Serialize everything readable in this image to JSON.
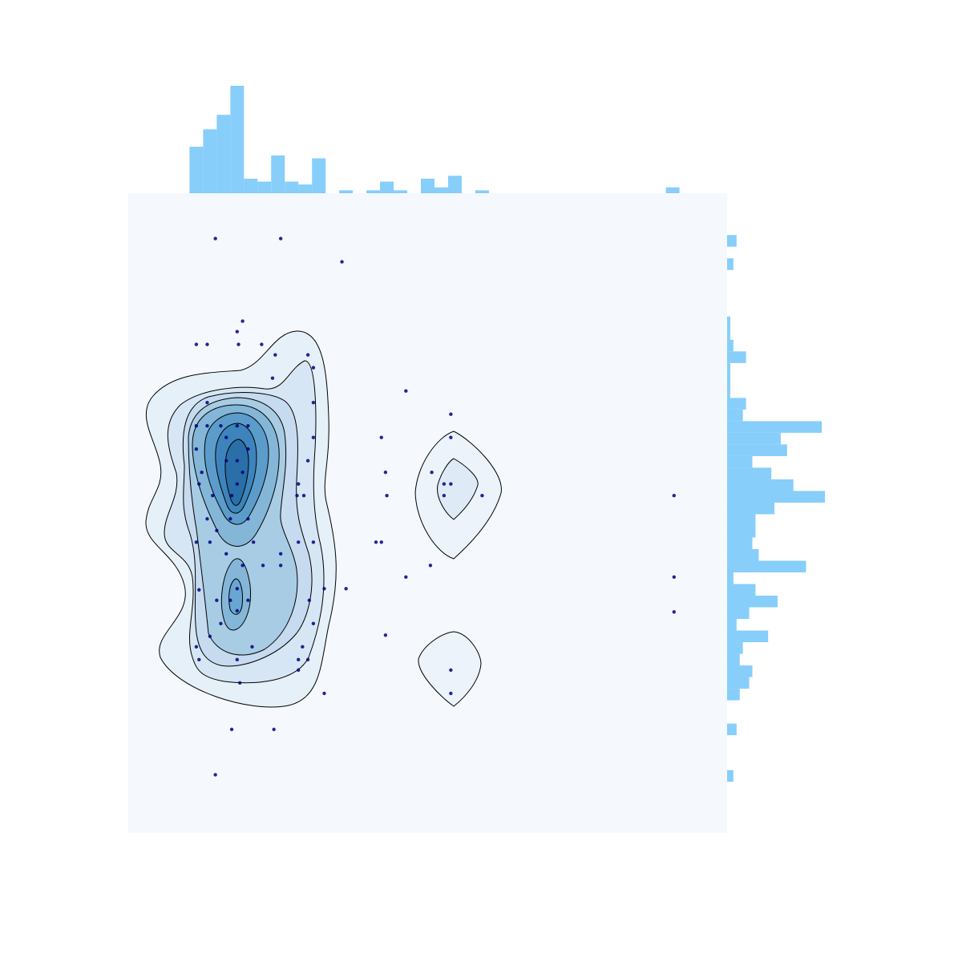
{
  "chart_data": [
    {
      "type": "scatter",
      "color": "#000080",
      "xlim": [
        -4.5,
        39.5
      ],
      "ylim": [
        -4.4,
        50.6
      ],
      "x": [
        1.9,
        6.7,
        11.2,
        3.9,
        3.5,
        0.5,
        1.3,
        3.6,
        5.3,
        6.3,
        8.7,
        9.1,
        6.1,
        15.9,
        9.1,
        1.3,
        0.5,
        1.3,
        9.1,
        14.1,
        19.2,
        19.2,
        8.7,
        14.4,
        17.8,
        18.7,
        19.2,
        21.5,
        18.7,
        14.5,
        8.0,
        7.9,
        8.4,
        35.6,
        0.7,
        1.7,
        3.5,
        3.5,
        2.7,
        4.3,
        0.5,
        0.9,
        1.3,
        2.0,
        3.0,
        4.3,
        9.1,
        8.0,
        6.7,
        5.4,
        6.7,
        3.9,
        3.5,
        3.0,
        2.0,
        3.5,
        4.3,
        14.1,
        13.7,
        17.7,
        15.9,
        11.5,
        9.9,
        8.8,
        35.6,
        35.6,
        14.4,
        9.1,
        8.3,
        8.7,
        8.0,
        9.9,
        3.7,
        1.5,
        0.5,
        0.7,
        3.1,
        6.2,
        1.9,
        19.2,
        19.2,
        1.5,
        0.5,
        2.7,
        4.7,
        0.7,
        2.3,
        4.6,
        3.5,
        8.0,
        3.5,
        2.7,
        3.9,
        3.1,
        2.3,
        4.3
      ],
      "y": [
        46.7,
        46.7,
        44.7,
        39.6,
        38.7,
        37.6,
        37.6,
        37.6,
        37.6,
        36.7,
        36.7,
        35.6,
        34.7,
        33.6,
        32.6,
        32.6,
        30.6,
        30.6,
        29.6,
        29.6,
        31.6,
        29.6,
        27.6,
        26.6,
        26.6,
        25.6,
        25.6,
        24.6,
        24.6,
        24.6,
        25.6,
        24.6,
        24.6,
        24.6,
        25.6,
        24.6,
        25.6,
        27.6,
        29.6,
        28.6,
        28.6,
        26.6,
        22.6,
        21.6,
        22.6,
        22.6,
        20.6,
        20.6,
        19.6,
        18.6,
        18.6,
        18.6,
        16.6,
        15.6,
        15.6,
        14.7,
        15.6,
        20.6,
        20.6,
        18.6,
        17.6,
        16.6,
        16.6,
        15.6,
        17.6,
        14.6,
        12.6,
        13.6,
        11.6,
        10.5,
        9.6,
        7.6,
        8.5,
        12.5,
        11.6,
        10.5,
        4.5,
        4.5,
        0.6,
        9.6,
        7.6,
        20.6,
        20.6,
        19.6,
        20.6,
        16.5,
        13.6,
        11.6,
        10.5,
        10.5,
        30.6,
        27.6,
        26.6,
        24.6,
        30.6,
        30.6
      ]
    },
    {
      "type": "histogram",
      "orientation": "vertical",
      "color": "#87cefa",
      "ylim": [
        0,
        37
      ],
      "bins": [
        0,
        1,
        2,
        3,
        4,
        5,
        6,
        7,
        8,
        9,
        10,
        11,
        12,
        13,
        14,
        15,
        16,
        17,
        18,
        19,
        20,
        21,
        22,
        23,
        24,
        25,
        26,
        27,
        28,
        29,
        30,
        31,
        32,
        33,
        34,
        35,
        36
      ],
      "values": [
        16,
        22,
        27,
        37,
        5,
        4,
        13,
        4,
        3,
        12,
        0,
        1,
        0,
        1,
        4,
        1,
        0,
        5,
        2,
        6,
        0,
        1,
        0,
        0,
        0,
        0,
        0,
        0,
        0,
        0,
        0,
        0,
        0,
        0,
        0,
        2
      ]
    },
    {
      "type": "histogram",
      "orientation": "horizontal",
      "color": "#87cefa",
      "xlim": [
        0,
        32
      ],
      "bins": [
        0,
        1,
        2,
        3,
        4,
        5,
        6,
        7,
        8,
        9,
        10,
        11,
        12,
        13,
        14,
        15,
        16,
        17,
        18,
        19,
        20,
        21,
        22,
        23,
        24,
        25,
        26,
        27,
        28,
        29,
        30,
        31,
        32,
        33,
        34,
        35,
        36,
        37,
        38,
        39,
        40,
        41,
        42,
        43,
        44,
        45,
        46,
        47,
        48
      ],
      "values": [
        2,
        0,
        0,
        0,
        3,
        0,
        0,
        4,
        7,
        8,
        4,
        5,
        13,
        3,
        7,
        16,
        9,
        2,
        25,
        10,
        8,
        9,
        9,
        15,
        31,
        21,
        14,
        8,
        19,
        17,
        30,
        5,
        6,
        1,
        1,
        1,
        6,
        2,
        1,
        1,
        0,
        0,
        0,
        0,
        2,
        0,
        3,
        0
      ]
    }
  ]
}
